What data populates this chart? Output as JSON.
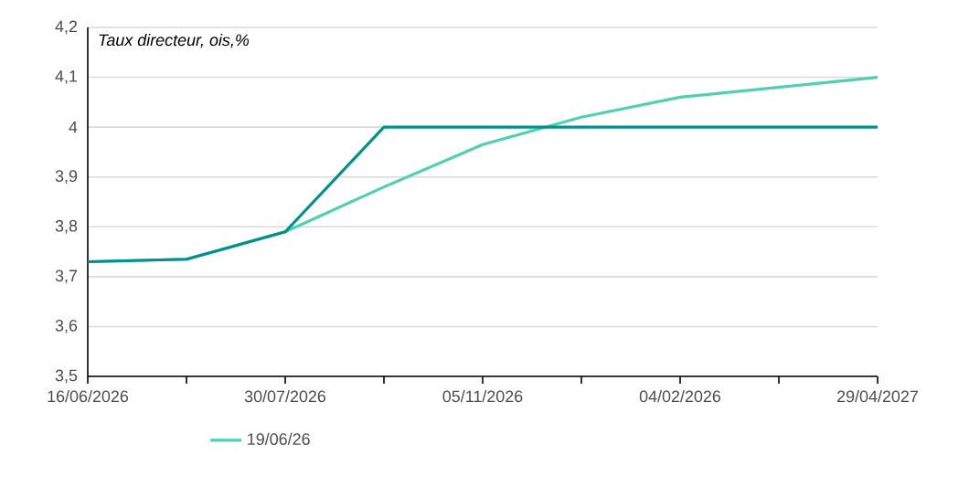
{
  "chart_data": {
    "type": "line",
    "ylabel": "Taux directeur, ois,%",
    "categories": [
      "16/06/2026",
      null,
      "30/07/2026",
      null,
      "05/11/2026",
      null,
      "04/02/2026",
      null,
      "29/04/2027"
    ],
    "series": [
      {
        "name": "19/06/26",
        "color": "#4fd1b0",
        "values": [
          3.73,
          3.735,
          3.79,
          3.88,
          3.965,
          4.02,
          4.06,
          4.08,
          4.1
        ]
      },
      {
        "color": "#00918f",
        "values": [
          3.73,
          3.735,
          3.79,
          4.0,
          4.0,
          4.0,
          4.0,
          4.0,
          4.0
        ]
      }
    ],
    "ylim": [
      3.5,
      4.2
    ],
    "yticks": [
      {
        "value": 3.5,
        "label": "3,5"
      },
      {
        "value": 3.6,
        "label": "3,6"
      },
      {
        "value": 3.7,
        "label": "3,7"
      },
      {
        "value": 3.8,
        "label": "3,8"
      },
      {
        "value": 3.9,
        "label": "3,9"
      },
      {
        "value": 4.0,
        "label": "4"
      },
      {
        "value": 4.1,
        "label": "4,1"
      },
      {
        "value": 4.2,
        "label": "4,2"
      }
    ],
    "grid": "y",
    "legend": "bottom",
    "marker": "none",
    "line_style": "solid"
  }
}
